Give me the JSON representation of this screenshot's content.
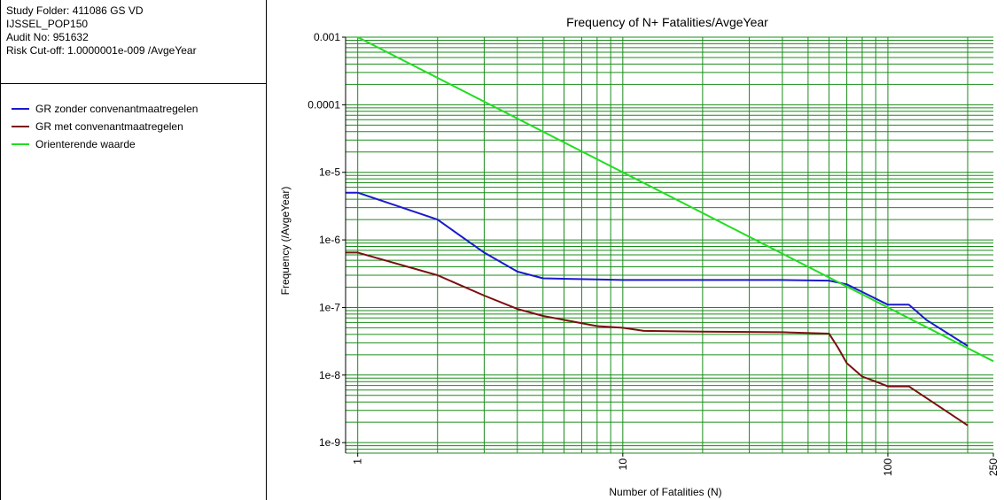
{
  "info": {
    "study_folder": "Study Folder: 411086 GS VD",
    "population": "IJSSEL_POP150",
    "audit_no": "Audit No: 951632",
    "risk_cutoff": "Risk Cut-off: 1.0000001e-009 /AvgeYear"
  },
  "colors": {
    "grid": "#1a8c1a",
    "background": "#ffffff",
    "axes": "#000000"
  },
  "chart_data": {
    "type": "line",
    "title": "Frequency of N+ Fatalities/AvgeYear",
    "xlabel": "Number of Fatalities (N)",
    "ylabel": "Frequency (/AvgeYear)",
    "x_scale": "log",
    "y_scale": "log",
    "xlim": [
      0.9,
      250
    ],
    "ylim": [
      7e-10,
      0.001
    ],
    "x_ticks": [
      {
        "value": 1,
        "label": "1"
      },
      {
        "value": 10,
        "label": "10"
      },
      {
        "value": 100,
        "label": "100"
      },
      {
        "value": 250,
        "label": "250"
      }
    ],
    "y_ticks": [
      {
        "value": 0.001,
        "label": "0.001"
      },
      {
        "value": 0.0001,
        "label": "0.0001"
      },
      {
        "value": 1e-05,
        "label": "1e-5"
      },
      {
        "value": 1e-06,
        "label": "1e-6"
      },
      {
        "value": 1e-07,
        "label": "1e-7"
      },
      {
        "value": 1e-08,
        "label": "1e-8"
      },
      {
        "value": 1e-09,
        "label": "1e-9"
      }
    ],
    "grid": true,
    "legend_position": "left-panel",
    "series": [
      {
        "name": "GR zonder convenantmaatregelen",
        "color": "#1a1acc",
        "x": [
          0.9,
          1,
          2,
          3,
          4,
          5,
          8,
          10,
          20,
          40,
          60,
          70,
          80,
          100,
          120,
          140,
          200
        ],
        "y": [
          5e-06,
          5e-06,
          2e-06,
          6.5e-07,
          3.4e-07,
          2.7e-07,
          2.6e-07,
          2.55e-07,
          2.55e-07,
          2.55e-07,
          2.5e-07,
          2.2e-07,
          1.7e-07,
          1.1e-07,
          1.1e-07,
          6.5e-08,
          2.7e-08
        ]
      },
      {
        "name": "GR met convenantmaatregelen",
        "color": "#7a1010",
        "x": [
          0.9,
          1,
          2,
          3,
          4,
          5,
          8,
          10,
          12,
          20,
          40,
          60,
          65,
          70,
          80,
          90,
          100,
          120,
          200
        ],
        "y": [
          6.5e-07,
          6.5e-07,
          3e-07,
          1.5e-07,
          9.5e-08,
          7.5e-08,
          5.3e-08,
          5e-08,
          4.5e-08,
          4.4e-08,
          4.3e-08,
          4.1e-08,
          2.5e-08,
          1.5e-08,
          9.5e-09,
          8e-09,
          6.8e-09,
          6.8e-09,
          1.8e-09
        ]
      },
      {
        "name": "Orienterende waarde",
        "color": "#22dd22",
        "x": [
          1,
          250
        ],
        "y": [
          0.001,
          1.6e-08
        ]
      }
    ]
  }
}
